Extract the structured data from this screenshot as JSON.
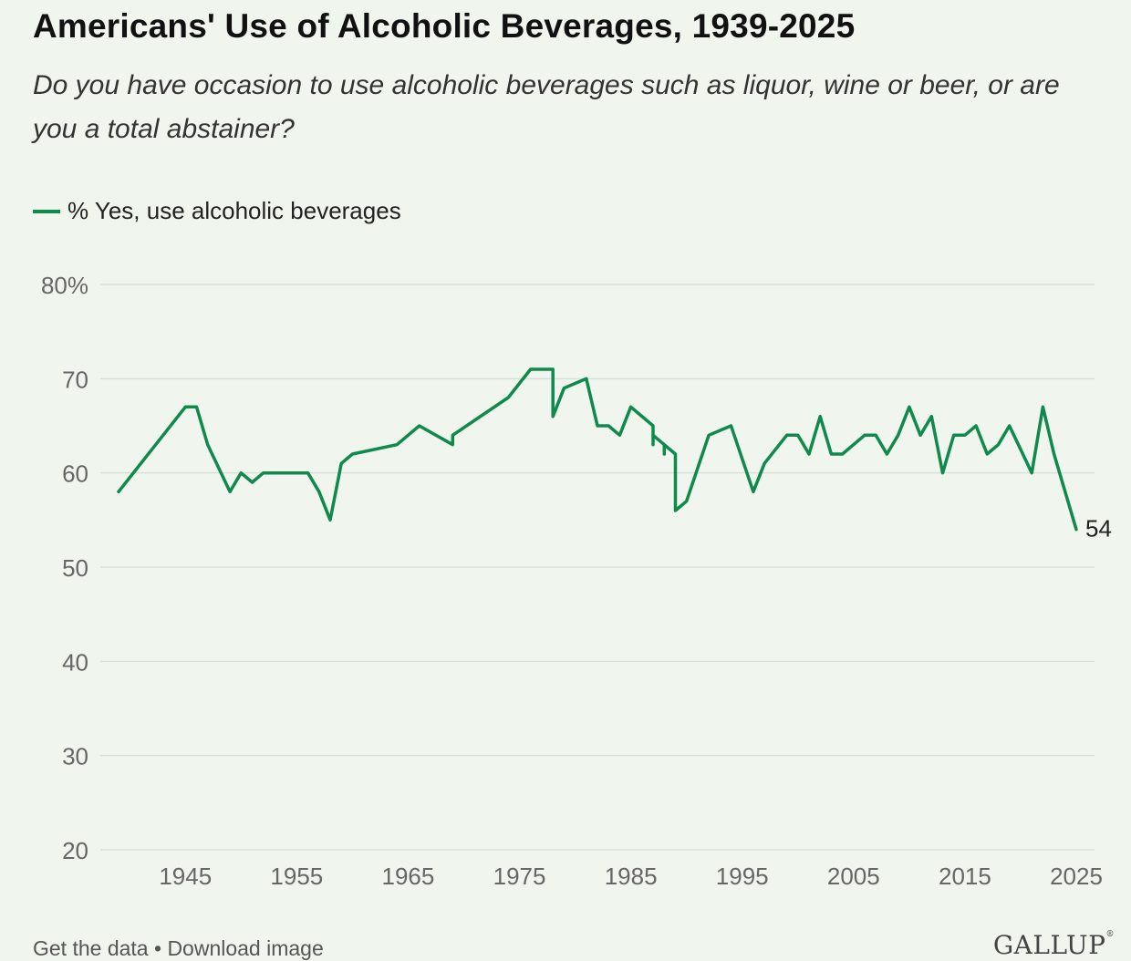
{
  "header": {
    "title": "Americans' Use of Alcoholic Beverages, 1939-2025",
    "subtitle": "Do you have occasion to use alcoholic beverages such as liquor, wine or beer, or are you a total abstainer?"
  },
  "colors": {
    "series": "#0f8a4c",
    "grid": "#d9e0d8",
    "tick": "#666666",
    "background": "#f0f6ee"
  },
  "chart_data": {
    "type": "line",
    "title": "Americans' Use of Alcoholic Beverages, 1939-2025",
    "xlabel": "",
    "ylabel": "",
    "xlim": [
      1938,
      2027
    ],
    "ylim": [
      20,
      80
    ],
    "grid": true,
    "legend_position": "top-left",
    "x_ticks": [
      1945,
      1955,
      1965,
      1975,
      1985,
      1995,
      2005,
      2015,
      2025
    ],
    "y_ticks": [
      20,
      30,
      40,
      50,
      60,
      70,
      80
    ],
    "y_tick_labels": [
      "20",
      "30",
      "40",
      "50",
      "60",
      "70",
      "80%"
    ],
    "end_label": "54",
    "series": [
      {
        "name": "% Yes, use alcoholic beverages",
        "points": [
          [
            1939,
            58
          ],
          [
            1945,
            67
          ],
          [
            1946,
            67
          ],
          [
            1947,
            63
          ],
          [
            1949,
            58
          ],
          [
            1950,
            60
          ],
          [
            1951,
            59
          ],
          [
            1952,
            60
          ],
          [
            1956,
            60
          ],
          [
            1957,
            58
          ],
          [
            1958,
            55
          ],
          [
            1959,
            61
          ],
          [
            1960,
            62
          ],
          [
            1964,
            63
          ],
          [
            1966,
            65
          ],
          [
            1969,
            63
          ],
          [
            1969,
            64
          ],
          [
            1974,
            68
          ],
          [
            1976,
            71
          ],
          [
            1978,
            71
          ],
          [
            1978,
            66
          ],
          [
            1979,
            69
          ],
          [
            1981,
            70
          ],
          [
            1982,
            65
          ],
          [
            1983,
            65
          ],
          [
            1984,
            64
          ],
          [
            1985,
            67
          ],
          [
            1987,
            65
          ],
          [
            1987,
            63
          ],
          [
            1987,
            64
          ],
          [
            1988,
            63
          ],
          [
            1988,
            62
          ],
          [
            1988,
            63
          ],
          [
            1989,
            62
          ],
          [
            1989,
            56
          ],
          [
            1990,
            57
          ],
          [
            1992,
            64
          ],
          [
            1994,
            65
          ],
          [
            1996,
            58
          ],
          [
            1997,
            61
          ],
          [
            1999,
            64
          ],
          [
            2000,
            64
          ],
          [
            2001,
            62
          ],
          [
            2002,
            66
          ],
          [
            2003,
            62
          ],
          [
            2004,
            62
          ],
          [
            2006,
            64
          ],
          [
            2007,
            64
          ],
          [
            2008,
            62
          ],
          [
            2009,
            64
          ],
          [
            2010,
            67
          ],
          [
            2011,
            64
          ],
          [
            2012,
            66
          ],
          [
            2013,
            60
          ],
          [
            2014,
            64
          ],
          [
            2015,
            64
          ],
          [
            2016,
            65
          ],
          [
            2017,
            62
          ],
          [
            2018,
            63
          ],
          [
            2019,
            65
          ],
          [
            2021,
            60
          ],
          [
            2022,
            67
          ],
          [
            2023,
            62
          ],
          [
            2025,
            54
          ]
        ]
      }
    ]
  },
  "footer": {
    "get_data": "Get the data",
    "separator": " • ",
    "download": "Download image",
    "logo": "GALLUP",
    "logo_mark": "®"
  }
}
